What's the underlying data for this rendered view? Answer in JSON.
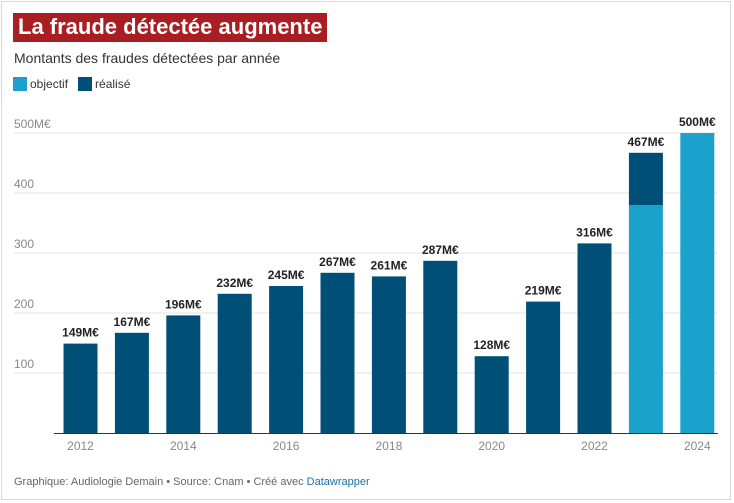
{
  "title": "La fraude détectée augmente",
  "subtitle": "Montants des fraudes détectées par année",
  "legend": [
    {
      "label": "objectif",
      "color": "#1aa2cc"
    },
    {
      "label": "réalisé",
      "color": "#004f76"
    }
  ],
  "footer": {
    "text": "Graphique: Audiologie Demain • Source: Cnam • Créé avec ",
    "link": "Datawrapper"
  },
  "chart_data": {
    "type": "bar",
    "categories": [
      "2012",
      "2013",
      "2014",
      "2015",
      "2016",
      "2017",
      "2018",
      "2019",
      "2020",
      "2021",
      "2022",
      "2023",
      "2024"
    ],
    "series": [
      {
        "name": "réalisé",
        "values": [
          149,
          167,
          196,
          232,
          245,
          267,
          261,
          287,
          128,
          219,
          316,
          467,
          null
        ]
      },
      {
        "name": "objectif",
        "values": [
          null,
          null,
          null,
          null,
          null,
          null,
          null,
          null,
          null,
          null,
          null,
          380,
          500
        ]
      }
    ],
    "data_labels": [
      "149M€",
      "167M€",
      "196M€",
      "232M€",
      "245M€",
      "267M€",
      "261M€",
      "287M€",
      "128M€",
      "219M€",
      "316M€",
      "467M€",
      "500M€"
    ],
    "x_tick_labels": [
      "2012",
      "2014",
      "2016",
      "2018",
      "2020",
      "2022",
      "2024"
    ],
    "y_tick_labels": [
      "100",
      "200",
      "300",
      "400",
      "500M€"
    ],
    "y_ticks": [
      100,
      200,
      300,
      400,
      500
    ],
    "ylim": [
      0,
      500
    ],
    "grid": true,
    "legend_position": "top-left",
    "colors": {
      "objectif": "#1aa2cc",
      "realise": "#004f76"
    }
  }
}
